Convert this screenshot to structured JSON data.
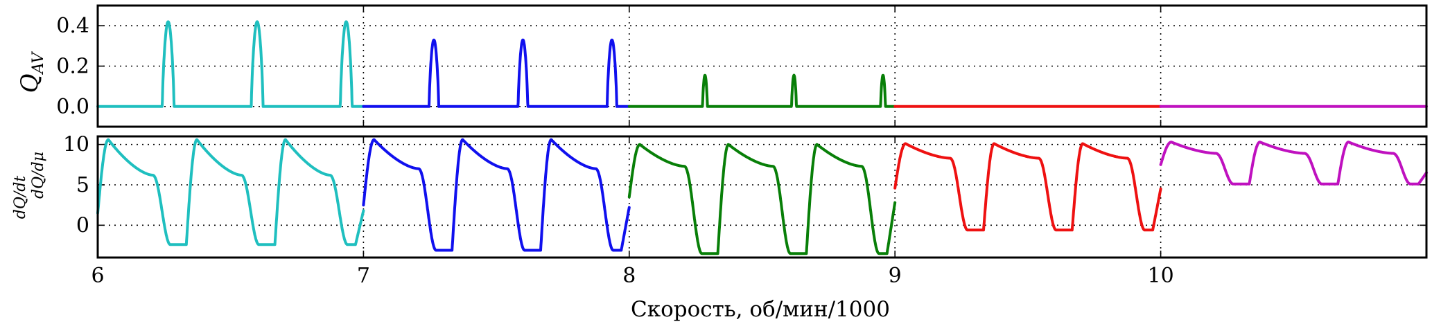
{
  "chart_data": {
    "type": "line",
    "xlabel": "Скорость, об/мин/1000",
    "xlim": [
      6,
      11
    ],
    "xticks": [
      "6",
      "7",
      "8",
      "9",
      "10"
    ],
    "x_tick_values": [
      6,
      7,
      8,
      9,
      10
    ],
    "colors": {
      "6-7": "#1fbfbf",
      "7-8": "#1010ee",
      "8-9": "#087f08",
      "9-10": "#ee1111",
      "10-11": "#bf11bf"
    },
    "panels": [
      {
        "name": "Q_AV",
        "ylabel_main": "Q",
        "ylabel_sub": "AV",
        "ylim": [
          -0.1,
          0.5
        ],
        "yticks": [
          "0.0",
          "0.2",
          "0.4"
        ],
        "ytick_values": [
          0.0,
          0.2,
          0.4
        ],
        "grid": true,
        "series": [
          {
            "range": "6-7",
            "baseline": 0.0,
            "pulses": [
              {
                "center": 6.265,
                "height": 0.42,
                "half_width": 0.022
              },
              {
                "center": 6.6,
                "height": 0.42,
                "half_width": 0.022
              },
              {
                "center": 6.935,
                "height": 0.42,
                "half_width": 0.022
              }
            ]
          },
          {
            "range": "7-8",
            "baseline": 0.0,
            "pulses": [
              {
                "center": 7.265,
                "height": 0.33,
                "half_width": 0.018
              },
              {
                "center": 7.6,
                "height": 0.33,
                "half_width": 0.018
              },
              {
                "center": 7.935,
                "height": 0.33,
                "half_width": 0.018
              }
            ]
          },
          {
            "range": "8-9",
            "baseline": 0.0,
            "pulses": [
              {
                "center": 8.285,
                "height": 0.155,
                "half_width": 0.009
              },
              {
                "center": 8.62,
                "height": 0.155,
                "half_width": 0.009
              },
              {
                "center": 8.955,
                "height": 0.155,
                "half_width": 0.009
              }
            ]
          },
          {
            "range": "9-10",
            "baseline": 0.0,
            "pulses": []
          },
          {
            "range": "10-11",
            "baseline": 0.0,
            "pulses": []
          }
        ]
      },
      {
        "name": "derivatives",
        "ylabel_left": "dQ/dt",
        "ylabel_right": "dQ/dμ",
        "ylim": [
          -4,
          11
        ],
        "yticks": [
          "0",
          "5",
          "10"
        ],
        "ytick_values": [
          0,
          5,
          10
        ],
        "grid": true,
        "series": [
          {
            "range": "6-7",
            "start": 1.5,
            "peak": 10.6,
            "before_drop": 6.2,
            "trough": -2.4,
            "end": 1.8
          },
          {
            "range": "7-8",
            "start": 2.5,
            "peak": 10.6,
            "before_drop": 7.0,
            "trough": -3.1,
            "end": 2.2
          },
          {
            "range": "8-9",
            "start": 3.5,
            "peak": 10.0,
            "before_drop": 7.3,
            "trough": -3.5,
            "end": 2.8
          },
          {
            "range": "9-10",
            "start": 4.6,
            "peak": 10.1,
            "before_drop": 8.3,
            "trough": -0.6,
            "end": 4.5
          },
          {
            "range": "10-11",
            "start": 7.5,
            "peak": 10.3,
            "before_drop": 8.9,
            "trough": 5.1,
            "end": 6.5
          }
        ]
      }
    ]
  }
}
